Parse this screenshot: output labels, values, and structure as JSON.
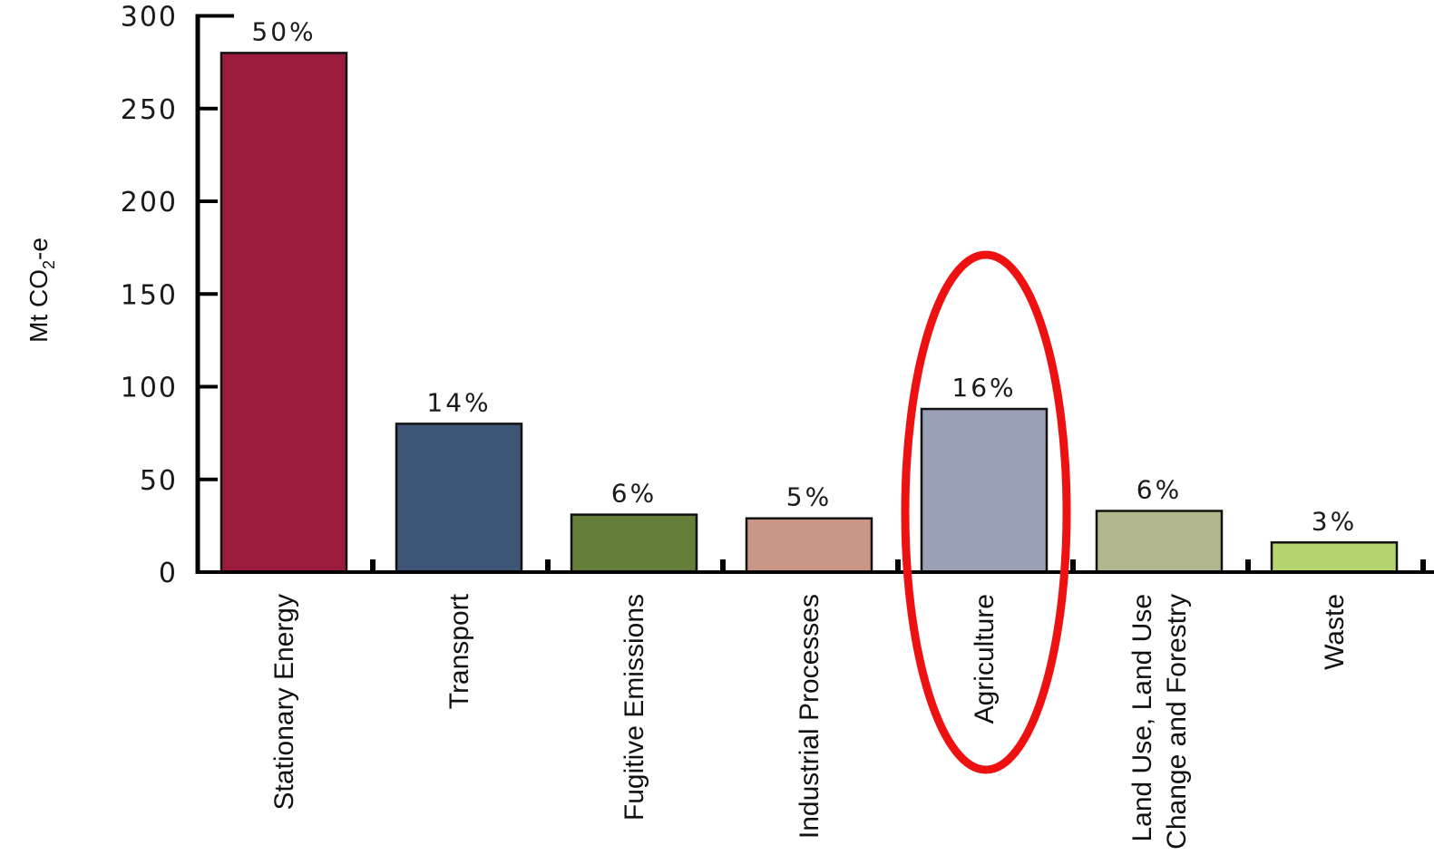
{
  "chart_data": {
    "type": "bar",
    "ylabel": "Mt CO",
    "ylabel_subscript": "2",
    "ylabel_suffix": "-e",
    "ylim": [
      0,
      300
    ],
    "yticks": [
      0,
      50,
      100,
      150,
      200,
      250,
      300
    ],
    "categories": [
      [
        "Stationary Energy"
      ],
      [
        "Transport"
      ],
      [
        "Fugitive Emissions"
      ],
      [
        "Industrial Processes"
      ],
      [
        "Agriculture"
      ],
      [
        "Land Use, Land Use",
        "Change and Forestry"
      ],
      [
        "Waste"
      ]
    ],
    "values": [
      280,
      80,
      31,
      29,
      88,
      33,
      16
    ],
    "data_labels": [
      "50%",
      "14%",
      "6%",
      "5%",
      "16%",
      "6%",
      "3%"
    ],
    "colors": [
      "#9b1b3c",
      "#3d5677",
      "#647d39",
      "#c99587",
      "#9aa0b5",
      "#b1b68c",
      "#b7d56f"
    ],
    "highlight": {
      "category_index": 4,
      "shape": "ellipse",
      "color": "#ee1111"
    },
    "grid": false,
    "legend": "none"
  }
}
